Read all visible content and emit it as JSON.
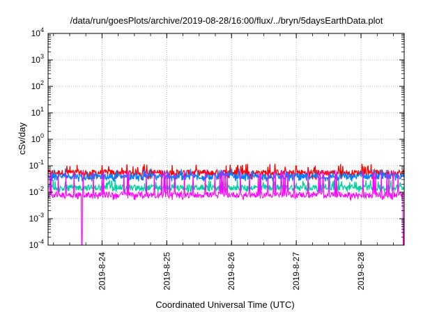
{
  "chart_data": {
    "type": "line",
    "title": "/data/run/goesPlots/archive/2019-08-28/16:00/flux/../bryn/5daysEarthData.plot",
    "xlabel": "Coordinated Universal Time (UTC)",
    "ylabel": "cSv/day",
    "yscale": "log",
    "ylim": [
      0.0001,
      10000
    ],
    "xlim": [
      "2019-08-23T04:00",
      "2019-08-28T16:00"
    ],
    "y_ticks": [
      {
        "value": 0.0001,
        "base": "10",
        "exp": "-4"
      },
      {
        "value": 0.001,
        "base": "10",
        "exp": "-3"
      },
      {
        "value": 0.01,
        "base": "10",
        "exp": "-2"
      },
      {
        "value": 0.1,
        "base": "10",
        "exp": "-1"
      },
      {
        "value": 1,
        "base": "10",
        "exp": "0"
      },
      {
        "value": 10,
        "base": "10",
        "exp": "1"
      },
      {
        "value": 100,
        "base": "10",
        "exp": "2"
      },
      {
        "value": 1000,
        "base": "10",
        "exp": "3"
      },
      {
        "value": 10000,
        "base": "10",
        "exp": "4"
      }
    ],
    "x_ticks": [
      "2019-8-24",
      "2019-8-25",
      "2019-8-26",
      "2019-8-27",
      "2019-8-28"
    ],
    "grid": true,
    "series": [
      {
        "color": "#ff0000",
        "typical": 0.055,
        "low": 0.03,
        "high": 0.12
      },
      {
        "color": "#0080ff",
        "typical": 0.04,
        "low": 0.025,
        "high": 0.08
      },
      {
        "color": "#00d0a0",
        "typical": 0.015,
        "low": 0.01,
        "high": 0.03
      },
      {
        "color": "#ff00ff",
        "typical": 0.008,
        "low": 0.005,
        "high": 0.07,
        "dropouts": [
          "2019-08-23T16:30",
          "2019-08-28T15:40"
        ]
      }
    ]
  }
}
